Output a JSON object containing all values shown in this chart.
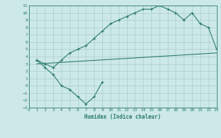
{
  "title": "",
  "xlabel": "Humidex (Indice chaleur)",
  "bg_color": "#cce8e8",
  "line_color": "#2a7a6a",
  "grid_color": "#aacccc",
  "xlim": [
    0,
    23
  ],
  "ylim": [
    -3,
    11
  ],
  "xticks": [
    0,
    1,
    2,
    3,
    4,
    5,
    6,
    7,
    8,
    9,
    10,
    11,
    12,
    13,
    14,
    15,
    16,
    17,
    18,
    19,
    20,
    21,
    22,
    23
  ],
  "yticks": [
    -3,
    -2,
    -1,
    0,
    1,
    2,
    3,
    4,
    5,
    6,
    7,
    8,
    9,
    10,
    11
  ],
  "line1_x": [
    1,
    2,
    3,
    4,
    5,
    6,
    7,
    8,
    9,
    10,
    11,
    12,
    13,
    14,
    15,
    16,
    17,
    18,
    19,
    20,
    21,
    22,
    23
  ],
  "line1_y": [
    3.5,
    3.0,
    2.5,
    3.5,
    4.5,
    5.0,
    5.5,
    6.5,
    7.5,
    8.5,
    9.0,
    9.5,
    10.0,
    10.5,
    10.5,
    11.0,
    10.5,
    10.0,
    9.0,
    10.0,
    8.5,
    8.0,
    5.0
  ],
  "line2_x": [
    1,
    23
  ],
  "line2_y": [
    3.0,
    4.5
  ],
  "line3_x": [
    1,
    2,
    3,
    4,
    5,
    6,
    7,
    8,
    9
  ],
  "line3_y": [
    3.5,
    2.5,
    1.5,
    0.0,
    -0.5,
    -1.5,
    -2.5,
    -1.5,
    0.5
  ],
  "marker": "+",
  "markersize": 3,
  "linewidth": 0.8,
  "tick_fontsize": 4.5,
  "xlabel_fontsize": 5.5
}
